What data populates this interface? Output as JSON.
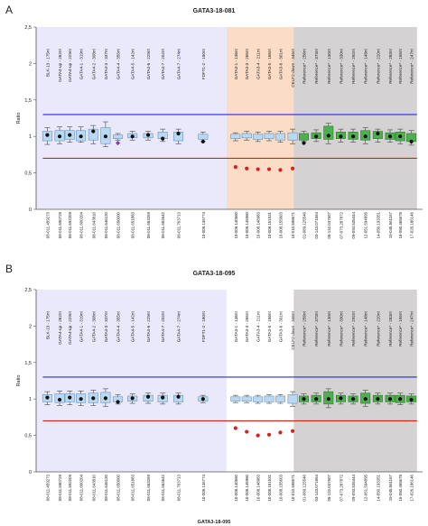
{
  "chart_data": [
    {
      "panel_letter": "A",
      "title": "GATA3-18-081",
      "type": "box",
      "ylabel": "Ratio",
      "ylim": [
        0,
        2.5
      ],
      "yticks": [
        "0",
        "0,5",
        "1",
        "1,5",
        "2",
        "2,5"
      ],
      "xlabel": "",
      "upper_threshold": 1.3,
      "lower_threshold": 0.7,
      "colors": {
        "upper_threshold": "#2b2bd0",
        "lower_threshold": "#d42020",
        "region_normal": "#e9e9fb",
        "region_deleted": "#fbdcc6",
        "region_reference": "#d4d2d2",
        "box_normal": "#b9d9f2",
        "box_reference": "#4fae4f",
        "marker": "#111111",
        "marker_highlight": "#8e3bb8",
        "marker_deleted": "#d42020"
      },
      "regions": [
        {
          "name": "normal",
          "from": 0,
          "to": 17
        },
        {
          "name": "deleted",
          "from": 17,
          "to": 23
        },
        {
          "name": "reference",
          "from": 23,
          "to": 34
        }
      ],
      "probes": [
        "BLK-13 - 175nt",
        "GATA4-up - 262nt",
        "GATA4-up - 229nt",
        "GATA4-1 - 319nt",
        "GATA4-2 - 308nt",
        "GATA4-3 - 337nt",
        "GATA4-4 - 355nt",
        "GATA4-5 - 142nt",
        "GATA4-6 - 229nt",
        "GATA4-7 - 202nt",
        "GATA4-7 - 274nt",
        "FDFT1-2 - 180nt",
        "GATA3-1 - 136nt",
        "GATA3-3 - 265nt",
        "GATA3-4 - 211nt",
        "GATA3-5 - 166nt",
        "GATA3-6 - 301nt",
        "CELF2-down - 346nt",
        "Reference* - 256nt",
        "Reference* - 373nt",
        "Reference* - 130nt",
        "Reference* - 330nt",
        "Reference* - 292nt",
        "Reference* - 148nt",
        "Reference* - 220nt",
        "Reference* - 283nt",
        "Reference* - 155nt",
        "Reference* - 247nt"
      ],
      "positions": [
        "08-011.459273",
        "08-011.590729",
        "08-011.592209",
        "08-011.600204",
        "08-011.643810",
        "08-011.646120",
        "08-011.650000",
        "08-011.651883",
        "08-011.653269",
        "08-011.653542",
        "08-011.703713",
        "10-008.136774",
        "10-008.140560",
        "10-008.145960",
        "10-008.148983",
        "10-008.151531",
        "10-008.155603",
        "10-010.598671",
        "01-089.125546",
        "03-143.071664",
        "05-132.037607",
        "07-073.287872",
        "09-093.535444",
        "12-051.594895",
        "14-050.193351",
        "15-045.561167",
        "16-050.465678",
        "17-026.186146"
      ],
      "categories": [
        0,
        1,
        2,
        3,
        4,
        5,
        6,
        7,
        8,
        9,
        10,
        11,
        12,
        13,
        14,
        15,
        16,
        17,
        18,
        19,
        20,
        21,
        22,
        23,
        24,
        25,
        26,
        27
      ],
      "x_positions": [
        1.0,
        2.1,
        3.0,
        4.0,
        5.1,
        6.2,
        7.3,
        8.6,
        10.0,
        11.3,
        12.7,
        14.9,
        17.8,
        18.8,
        19.8,
        20.8,
        21.8,
        22.9,
        23.9,
        25.0,
        26.1,
        27.2,
        28.3,
        29.4,
        30.5,
        31.6,
        32.5,
        33.5
      ],
      "box_q1": [
        0.94,
        0.94,
        0.96,
        0.94,
        0.95,
        0.9,
        0.97,
        0.98,
        0.98,
        0.97,
        0.94,
        0.96,
        0.97,
        0.98,
        0.96,
        0.97,
        0.95,
        0.95,
        0.95,
        0.97,
        0.96,
        0.97,
        0.96,
        0.95,
        0.97,
        0.96,
        0.94,
        0.93
      ],
      "box_q3": [
        1.07,
        1.08,
        1.08,
        1.08,
        1.1,
        1.12,
        1.02,
        1.04,
        1.04,
        1.06,
        1.06,
        1.03,
        1.03,
        1.04,
        1.03,
        1.04,
        1.04,
        1.05,
        1.04,
        1.05,
        1.14,
        1.06,
        1.06,
        1.08,
        1.07,
        1.05,
        1.06,
        1.04
      ],
      "whisker_low": [
        0.89,
        0.9,
        0.92,
        0.92,
        0.9,
        0.86,
        0.95,
        0.95,
        0.95,
        0.93,
        0.9,
        0.93,
        0.94,
        0.95,
        0.93,
        0.94,
        0.92,
        0.9,
        0.93,
        0.93,
        0.9,
        0.92,
        0.92,
        0.9,
        0.92,
        0.92,
        0.9,
        0.88
      ],
      "whisker_high": [
        1.12,
        1.13,
        1.13,
        1.13,
        1.15,
        1.2,
        1.04,
        1.07,
        1.07,
        1.1,
        1.1,
        1.06,
        1.05,
        1.07,
        1.06,
        1.07,
        1.07,
        1.1,
        1.07,
        1.09,
        1.18,
        1.1,
        1.1,
        1.12,
        1.1,
        1.09,
        1.1,
        1.08
      ],
      "values": [
        1.02,
        1.0,
        1.02,
        1.0,
        1.07,
        1.0,
        0.91,
        1.0,
        1.02,
        0.97,
        1.04,
        0.93,
        0.58,
        0.56,
        0.55,
        0.55,
        0.54,
        0.56,
        0.91,
        1.0,
        1.01,
        1.0,
        1.0,
        1.0,
        1.04,
        1.0,
        1.0,
        0.93
      ],
      "marker_colors": [
        "marker",
        "marker",
        "marker",
        "marker",
        "marker",
        "marker",
        "marker_highlight",
        "marker",
        "marker",
        "marker",
        "marker",
        "marker",
        "marker_deleted",
        "marker_deleted",
        "marker_deleted",
        "marker_deleted",
        "marker_deleted",
        "marker_deleted",
        "marker",
        "marker",
        "marker",
        "marker",
        "marker",
        "marker",
        "marker",
        "marker",
        "marker",
        "marker"
      ],
      "grid": false
    },
    {
      "panel_letter": "B",
      "title": "GATA3-18-095",
      "type": "box",
      "ylabel": "Ratio",
      "ylim": [
        0,
        2.5
      ],
      "yticks": [
        "0",
        "0,5",
        "1",
        "1,5",
        "2",
        "2,5"
      ],
      "xlabel": "GATA3-18-095",
      "upper_threshold": 1.3,
      "lower_threshold": 0.7,
      "colors": {
        "upper_threshold": "#2b2bd0",
        "lower_threshold": "#d42020",
        "region_normal": "#e9e9fb",
        "region_deleted": "#ffffff",
        "region_reference": "#d4d2d2",
        "box_normal": "#b9d9f2",
        "box_reference": "#4fae4f",
        "marker": "#111111",
        "marker_highlight": "#8e3bb8",
        "marker_deleted": "#d42020"
      },
      "regions": [
        {
          "name": "normal",
          "from": 0,
          "to": 17
        },
        {
          "name": "deleted",
          "from": 17,
          "to": 23
        },
        {
          "name": "reference",
          "from": 23,
          "to": 34
        }
      ],
      "probes": [
        "BLK-13 - 175nt",
        "GATA4-up - 262nt",
        "GATA4-up - 229nt",
        "GATA4-1 - 319nt",
        "GATA4-2 - 308nt",
        "GATA4-3 - 337nt",
        "GATA4-4 - 355nt",
        "GATA4-5 - 142nt",
        "GATA4-6 - 229nt",
        "GATA4-7 - 202nt",
        "GATA4-7 - 274nt",
        "FDFT1-2 - 180nt",
        "GATA3-1 - 136nt",
        "GATA3-3 - 265nt",
        "GATA3-4 - 211nt",
        "GATA3-5 - 166nt",
        "GATA3-6 - 301nt",
        "CELF2-down - 346nt",
        "Reference* - 256nt",
        "Reference* - 373nt",
        "Reference* - 130nt",
        "Reference* - 330nt",
        "Reference* - 292nt",
        "Reference* - 148nt",
        "Reference* - 220nt",
        "Reference* - 283nt",
        "Reference* - 155nt",
        "Reference* - 247nt"
      ],
      "positions": [
        "08-011.459273",
        "08-011.590729",
        "08-011.592209",
        "08-011.600204",
        "08-011.643810",
        "08-011.646120",
        "08-011.650000",
        "08-011.651883",
        "08-011.653269",
        "08-011.653542",
        "08-011.703713",
        "10-008.136774",
        "10-008.140560",
        "10-008.145960",
        "10-008.148983",
        "10-008.151531",
        "10-008.155603",
        "10-010.598671",
        "01-089.125546",
        "03-143.071664",
        "05-132.037607",
        "07-073.287872",
        "09-093.535444",
        "12-051.594895",
        "14-050.193351",
        "15-045.561167",
        "16-050.465678",
        "17-026.186146"
      ],
      "categories": [
        0,
        1,
        2,
        3,
        4,
        5,
        6,
        7,
        8,
        9,
        10,
        11,
        12,
        13,
        14,
        15,
        16,
        17,
        18,
        19,
        20,
        21,
        22,
        23,
        24,
        25,
        26,
        27
      ],
      "x_positions": [
        1.0,
        2.1,
        3.0,
        4.0,
        5.1,
        6.2,
        7.3,
        8.6,
        10.0,
        11.3,
        12.7,
        14.9,
        17.8,
        18.8,
        19.8,
        20.8,
        21.8,
        22.9,
        23.9,
        25.0,
        26.1,
        27.2,
        28.3,
        29.4,
        30.5,
        31.6,
        32.5,
        33.5
      ],
      "box_q1": [
        0.96,
        0.95,
        0.96,
        0.95,
        0.95,
        0.95,
        0.96,
        0.97,
        0.97,
        0.96,
        0.96,
        0.97,
        0.97,
        0.97,
        0.96,
        0.96,
        0.96,
        0.94,
        0.96,
        0.96,
        0.93,
        0.96,
        0.96,
        0.94,
        0.96,
        0.96,
        0.95,
        0.96
      ],
      "box_q3": [
        1.06,
        1.07,
        1.07,
        1.07,
        1.08,
        1.09,
        1.03,
        1.04,
        1.05,
        1.05,
        1.05,
        1.03,
        1.03,
        1.03,
        1.03,
        1.04,
        1.04,
        1.06,
        1.04,
        1.05,
        1.1,
        1.05,
        1.04,
        1.08,
        1.05,
        1.05,
        1.05,
        1.04
      ],
      "whisker_low": [
        0.92,
        0.91,
        0.92,
        0.91,
        0.91,
        0.9,
        0.93,
        0.94,
        0.94,
        0.93,
        0.93,
        0.95,
        0.95,
        0.95,
        0.94,
        0.94,
        0.94,
        0.9,
        0.93,
        0.93,
        0.88,
        0.93,
        0.93,
        0.9,
        0.93,
        0.93,
        0.92,
        0.93
      ],
      "whisker_high": [
        1.1,
        1.11,
        1.11,
        1.11,
        1.12,
        1.14,
        1.06,
        1.07,
        1.08,
        1.08,
        1.08,
        1.05,
        1.05,
        1.05,
        1.05,
        1.06,
        1.06,
        1.1,
        1.07,
        1.08,
        1.14,
        1.08,
        1.07,
        1.12,
        1.08,
        1.08,
        1.08,
        1.07
      ],
      "values": [
        1.02,
        0.99,
        1.02,
        1.0,
        1.01,
        1.01,
        0.96,
        1.01,
        1.03,
        1.02,
        1.03,
        1.0,
        0.6,
        0.55,
        0.5,
        0.51,
        0.54,
        0.56,
        1.0,
        1.0,
        1.0,
        1.01,
        1.0,
        1.0,
        1.0,
        1.0,
        1.0,
        0.99
      ],
      "marker_colors": [
        "marker",
        "marker",
        "marker",
        "marker",
        "marker",
        "marker",
        "marker",
        "marker",
        "marker",
        "marker",
        "marker",
        "marker",
        "marker_deleted",
        "marker_deleted",
        "marker_deleted",
        "marker_deleted",
        "marker_deleted",
        "marker_deleted",
        "marker",
        "marker",
        "marker",
        "marker",
        "marker",
        "marker",
        "marker",
        "marker",
        "marker",
        "marker"
      ],
      "grid": false
    }
  ]
}
